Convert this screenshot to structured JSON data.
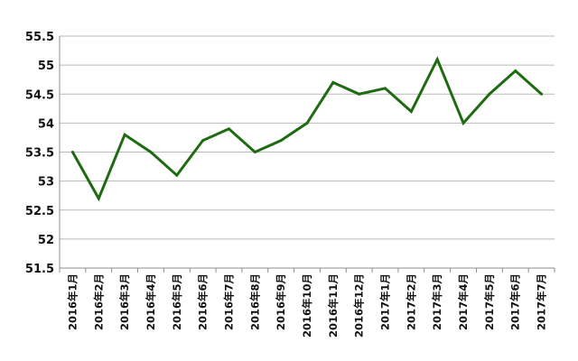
{
  "chart_data": {
    "type": "line",
    "title": "",
    "xlabel": "",
    "ylabel": "",
    "categories": [
      "2016年1月",
      "2016年2月",
      "2016年3月",
      "2016年4月",
      "2016年5月",
      "2016年6月",
      "2016年7月",
      "2016年8月",
      "2016年9月",
      "2016年10月",
      "2016年11月",
      "2016年12月",
      "2017年1月",
      "2017年2月",
      "2017年3月",
      "2017年4月",
      "2017年5月",
      "2017年6月",
      "2017年7月"
    ],
    "series": [
      {
        "values": [
          53.5,
          52.7,
          53.8,
          53.5,
          53.1,
          53.7,
          53.9,
          53.5,
          53.7,
          54.0,
          54.7,
          54.5,
          54.6,
          54.2,
          55.1,
          54.0,
          54.5,
          54.9,
          54.5
        ]
      }
    ],
    "ylim": [
      51.5,
      55.5
    ],
    "yticks": [
      "51.5",
      "52",
      "52.5",
      "53",
      "53.5",
      "54",
      "54.5",
      "55",
      "55.5"
    ],
    "grid": true,
    "colors": {
      "line": "#1f6b12",
      "grid": "#b9b9b9"
    }
  }
}
